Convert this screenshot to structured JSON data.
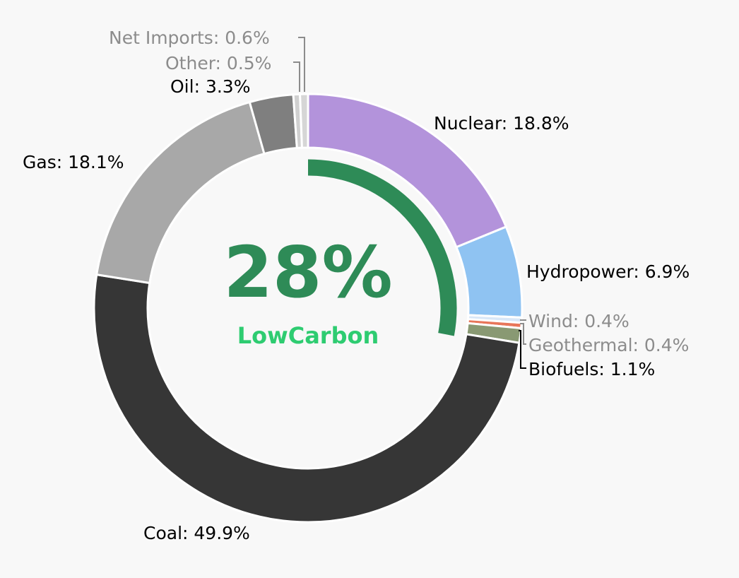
{
  "chart_data": {
    "type": "pie",
    "subtype": "donut",
    "legend": "none",
    "slices": [
      {
        "label": "Nuclear",
        "value": 18.8,
        "color": "#b393db",
        "text_color": "#000000",
        "text": "Nuclear: 18.8%"
      },
      {
        "label": "Hydropower",
        "value": 6.9,
        "color": "#8fc3f2",
        "text_color": "#000000",
        "text": "Hydropower: 6.9%"
      },
      {
        "label": "Wind",
        "value": 0.4,
        "color": "#d9e7f7",
        "text_color": "#8c8c8c",
        "text": "Wind: 0.4%"
      },
      {
        "label": "Geothermal",
        "value": 0.4,
        "color": "#e8765a",
        "text_color": "#8c8c8c",
        "text": "Geothermal: 0.4%"
      },
      {
        "label": "Biofuels",
        "value": 1.1,
        "color": "#899973",
        "text_color": "#000000",
        "text": "Biofuels: 1.1%"
      },
      {
        "label": "Coal",
        "value": 49.9,
        "color": "#363636",
        "text_color": "#000000",
        "text": "Coal: 49.9%"
      },
      {
        "label": "Gas",
        "value": 18.1,
        "color": "#a8a8a8",
        "text_color": "#000000",
        "text": "Gas: 18.1%"
      },
      {
        "label": "Oil",
        "value": 3.3,
        "color": "#7f7f7f",
        "text_color": "#000000",
        "text": "Oil: 3.3%"
      },
      {
        "label": "Other",
        "value": 0.5,
        "color": "#d0d0d0",
        "text_color": "#8c8c8c",
        "text": "Other: 0.5%"
      },
      {
        "label": "Net Imports",
        "value": 0.6,
        "color": "#d6d6d6",
        "text_color": "#8c8c8c",
        "text": "Net Imports: 0.6%"
      }
    ],
    "inner_arc": {
      "label": "LowCarbon",
      "value": 28,
      "color": "#2e8b57"
    },
    "center": {
      "value_text": "28%",
      "label": "LowCarbon",
      "value_color": "#2e8b57",
      "label_color": "#2ecc71"
    }
  }
}
